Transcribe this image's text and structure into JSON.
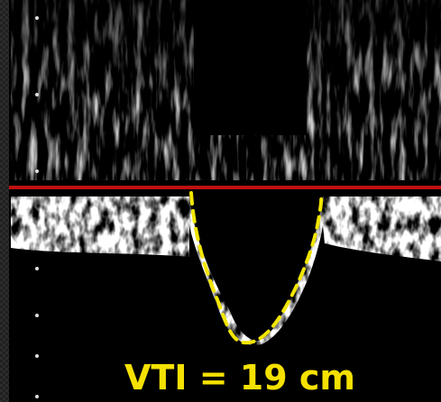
{
  "annotation": "VTI = 19 cm"
}
